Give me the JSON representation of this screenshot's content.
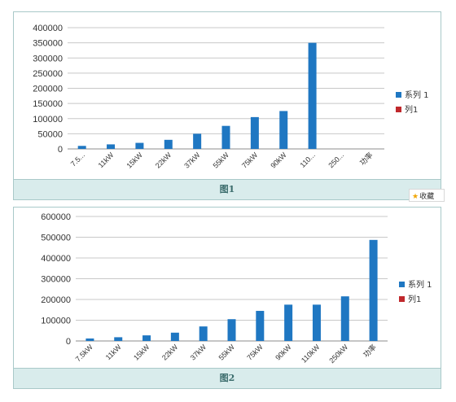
{
  "chart_data": [
    {
      "type": "bar",
      "ylim": [
        0,
        400000
      ],
      "yticks": [
        "400000",
        "350000",
        "300000",
        "250000",
        "200000",
        "150000",
        "100000",
        "50000",
        "0"
      ],
      "categories": [
        "7.5...",
        "11kW",
        "15kW",
        "22kW",
        "37kW",
        "55kW",
        "75kW",
        "90kW",
        "110...",
        "250...",
        "功率"
      ],
      "series": [
        {
          "name": "系列 1",
          "color": "#1f77c2",
          "values": [
            10000,
            15000,
            20000,
            30000,
            50000,
            76000,
            105000,
            125000,
            350000,
            0,
            0
          ]
        },
        {
          "name": "列1",
          "color": "#c0282c",
          "values": [
            0,
            0,
            0,
            0,
            0,
            0,
            0,
            0,
            0,
            0,
            0
          ]
        }
      ],
      "legend_position": "right",
      "caption": "图1"
    },
    {
      "type": "bar",
      "ylim": [
        0,
        600000
      ],
      "yticks": [
        "600000",
        "500000",
        "400000",
        "300000",
        "200000",
        "100000",
        "0"
      ],
      "categories": [
        "7.5kW",
        "11kW",
        "15kW",
        "22kW",
        "37kW",
        "55kW",
        "75kW",
        "90kW",
        "110kW",
        "250kW",
        "功率"
      ],
      "series": [
        {
          "name": "系列 1",
          "color": "#1f77c2",
          "values": [
            12000,
            18000,
            27000,
            40000,
            70000,
            105000,
            145000,
            175000,
            175000,
            215000,
            487000
          ]
        },
        {
          "name": "列1",
          "color": "#c0282c",
          "values": [
            0,
            0,
            0,
            0,
            0,
            0,
            0,
            0,
            0,
            0,
            0
          ]
        }
      ],
      "legend_position": "right",
      "caption": "图2"
    }
  ],
  "favorite": {
    "label": "收藏",
    "icon": "star-icon"
  }
}
